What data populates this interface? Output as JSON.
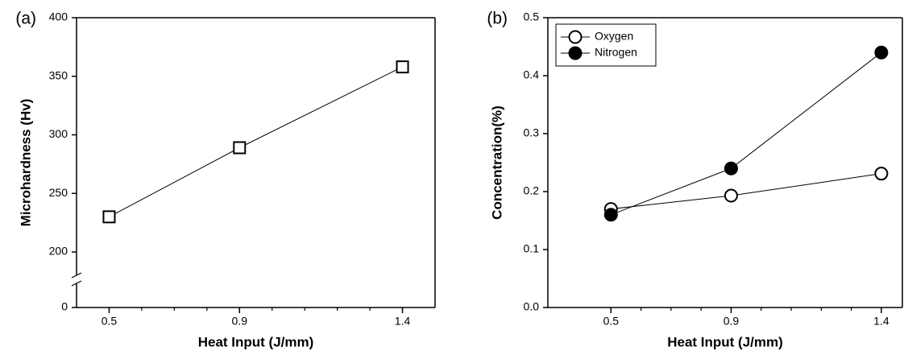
{
  "chart_data": [
    {
      "type": "line",
      "panel_label": "(a)",
      "x_label": "Heat Input (J/mm)",
      "y_label": "Microhardness (Hv)",
      "x": [
        0.5,
        0.9,
        1.4
      ],
      "values": [
        230,
        289,
        358
      ],
      "color": "#000000",
      "marker": "square",
      "filled": false,
      "xlim": [
        0.4,
        1.5
      ],
      "xticks": [
        0.5,
        0.9,
        1.4
      ],
      "xminor": [
        0.6,
        0.7,
        0.8,
        1.0,
        1.1,
        1.2,
        1.3
      ],
      "ylim": [
        0,
        400
      ],
      "yticks": [
        0,
        200,
        250,
        300,
        350,
        400
      ],
      "y_break": true
    },
    {
      "type": "line",
      "panel_label": "(b)",
      "x_label": "Heat Input (J/mm)",
      "y_label": "Concentration(%)",
      "x": [
        0.5,
        0.9,
        1.4
      ],
      "series": [
        {
          "name": "Oxygen",
          "color": "#000000",
          "marker": "circle",
          "filled": false,
          "values": [
            0.17,
            0.193,
            0.231
          ]
        },
        {
          "name": "Nitrogen",
          "color": "#000000",
          "marker": "circle",
          "filled": true,
          "values": [
            0.16,
            0.24,
            0.44
          ]
        }
      ],
      "legend": "upper-left",
      "xlim": [
        0.29,
        1.47
      ],
      "xticks": [
        0.5,
        0.9,
        1.4
      ],
      "xminor": [
        0.6,
        0.7,
        0.8,
        1.0,
        1.1,
        1.2,
        1.3
      ],
      "ylim": [
        0,
        0.5
      ],
      "yticks": [
        {
          "value": 0,
          "label": "0.0"
        },
        0.1,
        0.2,
        0.3,
        0.4,
        0.5
      ]
    }
  ]
}
